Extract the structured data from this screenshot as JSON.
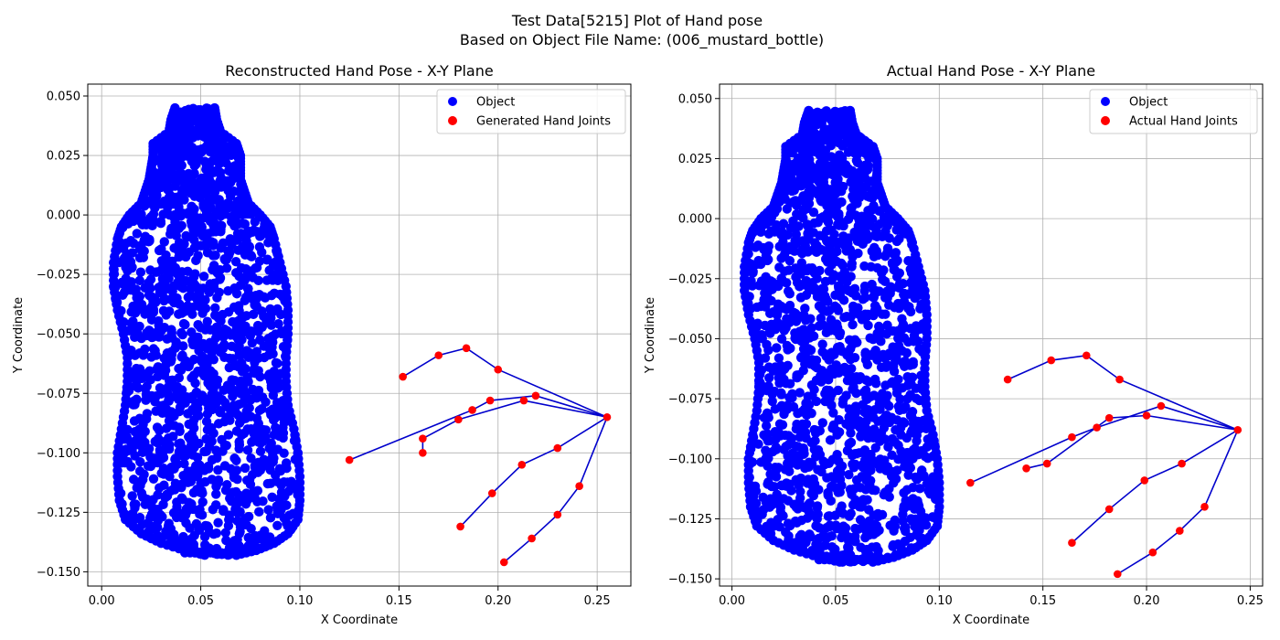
{
  "suptitle": [
    "Test Data[5215] Plot of Hand pose",
    "Based on Object File Name: (006_mustard_bottle)"
  ],
  "chart_data": [
    {
      "type": "scatter",
      "title": "Reconstructed Hand Pose - X-Y Plane",
      "xlabel": "X Coordinate",
      "ylabel": "Y Coordinate",
      "xlim": [
        -0.007,
        0.267
      ],
      "ylim": [
        -0.156,
        0.055
      ],
      "xticks": [
        0.0,
        0.05,
        0.1,
        0.15,
        0.2,
        0.25
      ],
      "xtick_labels": [
        "0.00",
        "0.05",
        "0.10",
        "0.15",
        "0.20",
        "0.25"
      ],
      "yticks": [
        0.05,
        0.025,
        0.0,
        -0.025,
        -0.05,
        -0.075,
        -0.1,
        -0.125,
        -0.15
      ],
      "ytick_labels": [
        "0.050",
        "0.025",
        "0.000",
        "−0.025",
        "−0.050",
        "−0.075",
        "−0.100",
        "−0.125",
        "−0.150"
      ],
      "grid": true,
      "legend_position": "top-right",
      "series": [
        {
          "name": "Object",
          "color": "#0000ff",
          "shape": "mustard_bottle"
        },
        {
          "name": "Generated Hand Joints",
          "color": "#ff0000",
          "line_color": "#0000cc",
          "wrist": [
            0.255,
            -0.085
          ],
          "fingers": [
            [
              [
                0.2,
                -0.065
              ],
              [
                0.184,
                -0.056
              ],
              [
                0.17,
                -0.059
              ],
              [
                0.152,
                -0.068
              ]
            ],
            [
              [
                0.219,
                -0.076
              ],
              [
                0.196,
                -0.078
              ],
              [
                0.187,
                -0.082
              ],
              [
                0.125,
                -0.103
              ]
            ],
            [
              [
                0.213,
                -0.078
              ],
              [
                0.18,
                -0.086
              ],
              [
                0.162,
                -0.094
              ],
              [
                0.162,
                -0.1
              ]
            ],
            [
              [
                0.23,
                -0.098
              ],
              [
                0.212,
                -0.105
              ],
              [
                0.197,
                -0.117
              ],
              [
                0.181,
                -0.131
              ]
            ],
            [
              [
                0.241,
                -0.114
              ],
              [
                0.23,
                -0.126
              ],
              [
                0.217,
                -0.136
              ],
              [
                0.203,
                -0.146
              ]
            ]
          ]
        }
      ]
    },
    {
      "type": "scatter",
      "title": "Actual Hand Pose - X-Y Plane",
      "xlabel": "X Coordinate",
      "ylabel": "Y Coordinate",
      "xlim": [
        -0.006,
        0.256
      ],
      "ylim": [
        -0.153,
        0.056
      ],
      "xticks": [
        0.0,
        0.05,
        0.1,
        0.15,
        0.2,
        0.25
      ],
      "xtick_labels": [
        "0.00",
        "0.05",
        "0.10",
        "0.15",
        "0.20",
        "0.25"
      ],
      "yticks": [
        0.05,
        0.025,
        0.0,
        -0.025,
        -0.05,
        -0.075,
        -0.1,
        -0.125,
        -0.15
      ],
      "ytick_labels": [
        "0.050",
        "0.025",
        "0.000",
        "−0.025",
        "−0.050",
        "−0.075",
        "−0.100",
        "−0.125",
        "−0.150"
      ],
      "grid": true,
      "legend_position": "top-right",
      "series": [
        {
          "name": "Object",
          "color": "#0000ff",
          "shape": "mustard_bottle"
        },
        {
          "name": "Actual Hand Joints",
          "color": "#ff0000",
          "line_color": "#0000cc",
          "wrist": [
            0.244,
            -0.088
          ],
          "fingers": [
            [
              [
                0.187,
                -0.067
              ],
              [
                0.171,
                -0.057
              ],
              [
                0.154,
                -0.059
              ],
              [
                0.133,
                -0.067
              ]
            ],
            [
              [
                0.207,
                -0.078
              ],
              [
                0.176,
                -0.087
              ],
              [
                0.164,
                -0.091
              ],
              [
                0.115,
                -0.11
              ]
            ],
            [
              [
                0.2,
                -0.082
              ],
              [
                0.182,
                -0.083
              ],
              [
                0.152,
                -0.102
              ],
              [
                0.142,
                -0.104
              ]
            ],
            [
              [
                0.217,
                -0.102
              ],
              [
                0.199,
                -0.109
              ],
              [
                0.182,
                -0.121
              ],
              [
                0.164,
                -0.135
              ]
            ],
            [
              [
                0.228,
                -0.12
              ],
              [
                0.216,
                -0.13
              ],
              [
                0.203,
                -0.139
              ],
              [
                0.186,
                -0.148
              ]
            ]
          ]
        }
      ]
    }
  ]
}
